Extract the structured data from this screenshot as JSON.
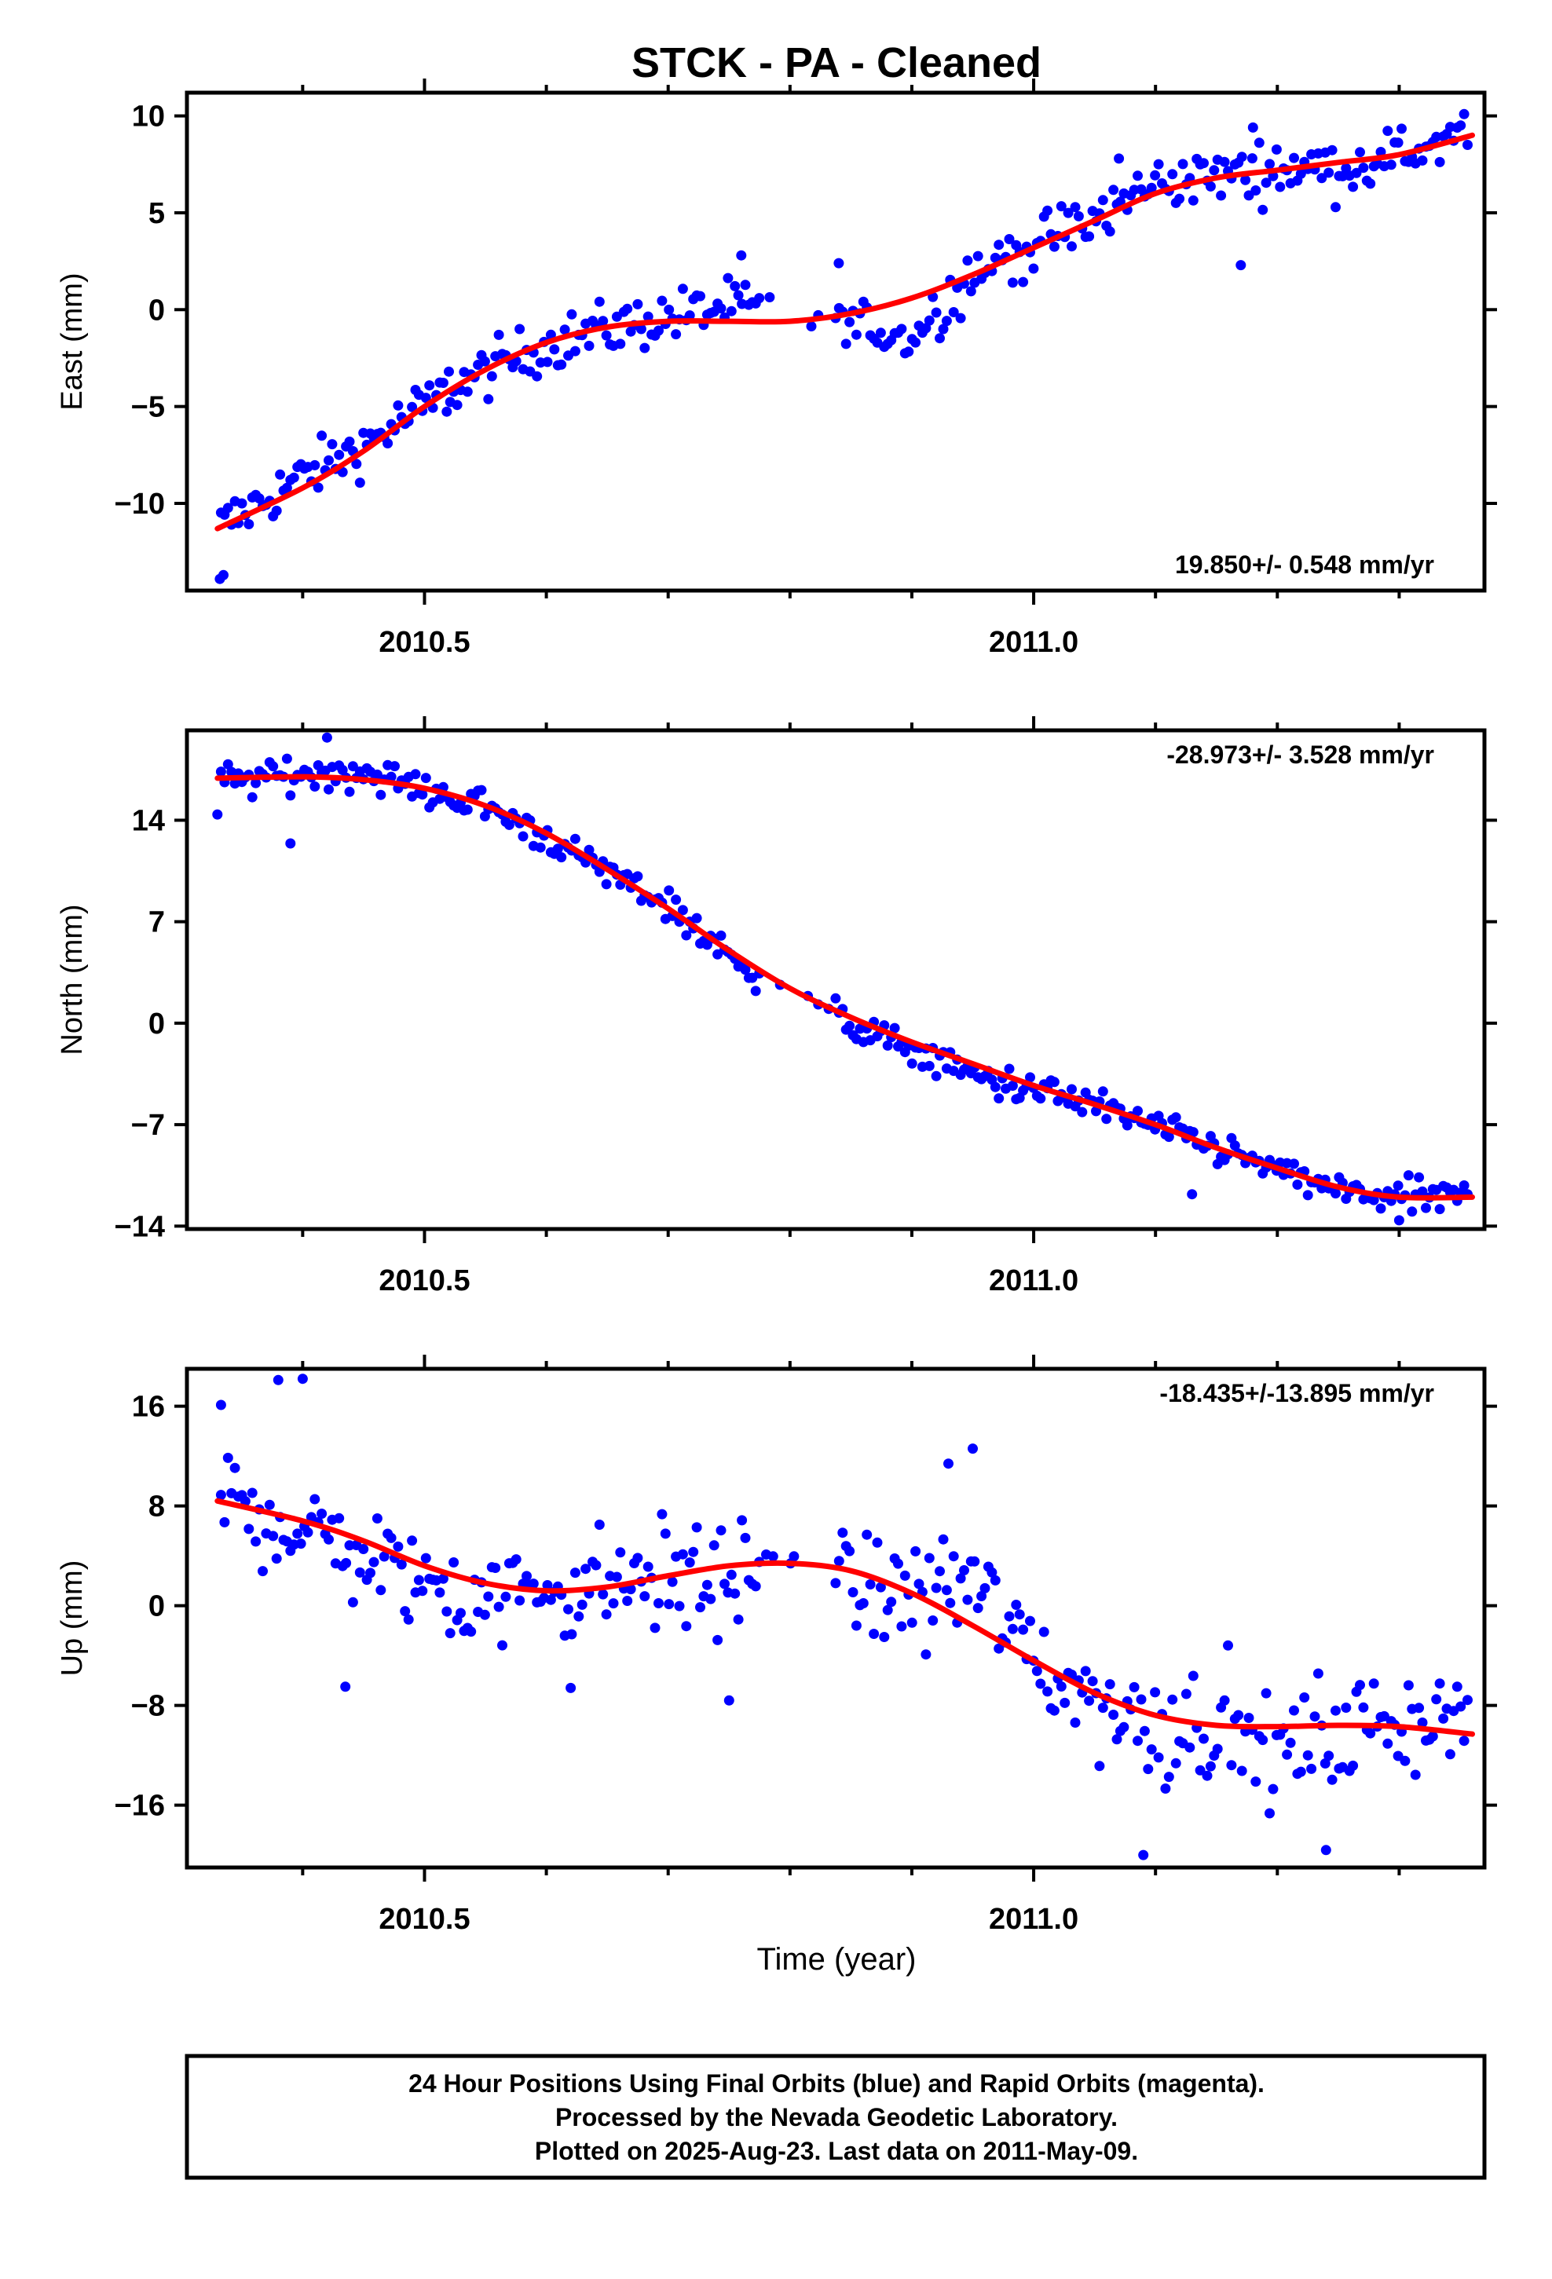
{
  "chart_data": {
    "type": "scatter",
    "title": "STCK  - PA - Cleaned",
    "xlabel": "Time (year)",
    "xlim": [
      2010.305,
      2011.37
    ],
    "x_major_ticks": [
      2010.5,
      2011.0
    ],
    "x_major_labels": [
      "2010.5",
      "2011.0"
    ],
    "x_minor_ticks": [
      2010.4,
      2010.6,
      2010.7,
      2010.8,
      2010.9,
      2011.1,
      2011.2,
      2011.3
    ],
    "grid": false,
    "legend": "none",
    "colors": {
      "points": "#0000ff",
      "fit": "#ff0000",
      "axes": "#000000"
    },
    "panels": [
      {
        "id": "east",
        "ylabel": "East (mm)",
        "ylim": [
          -14.5,
          11.2
        ],
        "yticks": [
          10,
          5,
          0,
          -5,
          -10
        ],
        "ytick_labels": [
          "10",
          "5",
          "0",
          "−5",
          "−10"
        ],
        "rate": "19.850+/- 0.548 mm/yr",
        "rate_position": "bottom-right",
        "fit": {
          "x": [
            2010.33,
            2010.4,
            2010.45,
            2010.5,
            2010.55,
            2010.6,
            2010.65,
            2010.7,
            2010.75,
            2010.8,
            2010.85,
            2010.9,
            2010.95,
            2011.0,
            2011.05,
            2011.1,
            2011.15,
            2011.2,
            2011.25,
            2011.3,
            2011.36
          ],
          "y": [
            -11.3,
            -9.2,
            -7.3,
            -5.0,
            -3.1,
            -1.7,
            -0.9,
            -0.6,
            -0.6,
            -0.6,
            -0.2,
            0.6,
            1.8,
            3.2,
            4.6,
            6.0,
            6.8,
            7.2,
            7.6,
            8.0,
            9.0
          ]
        },
        "anchors": [
          [
            2010.33,
            -11.3
          ],
          [
            2010.4,
            -8.6
          ],
          [
            2010.45,
            -7.0
          ],
          [
            2010.5,
            -5.0
          ],
          [
            2010.55,
            -3.2
          ],
          [
            2010.6,
            -1.8
          ],
          [
            2010.65,
            -1.0
          ],
          [
            2010.7,
            -0.4
          ],
          [
            2010.75,
            0.2
          ],
          [
            2010.8,
            -0.4
          ],
          [
            2010.85,
            -0.7
          ],
          [
            2010.9,
            -1.4
          ],
          [
            2010.95,
            1.8
          ],
          [
            2011.0,
            3.4
          ],
          [
            2011.05,
            4.6
          ],
          [
            2011.1,
            6.6
          ],
          [
            2011.15,
            6.9
          ],
          [
            2011.2,
            7.3
          ],
          [
            2011.25,
            7.3
          ],
          [
            2011.3,
            7.9
          ],
          [
            2011.36,
            9.4
          ]
        ],
        "noise": 1.0,
        "extra_points": [
          [
            2010.332,
            -13.9
          ],
          [
            2010.335,
            -13.7
          ],
          [
            2010.52,
            -3.2
          ],
          [
            2010.76,
            2.8
          ],
          [
            2010.84,
            2.4
          ],
          [
            2011.17,
            2.3
          ],
          [
            2011.07,
            7.8
          ],
          [
            2011.18,
            9.4
          ]
        ]
      },
      {
        "id": "north",
        "ylabel": "North (mm)",
        "ylim": [
          -14.2,
          20.2
        ],
        "yticks": [
          14,
          7,
          0,
          -7,
          -14
        ],
        "ytick_labels": [
          "14",
          "7",
          "0",
          "−7",
          "−14"
        ],
        "rate": "-28.973+/- 3.528 mm/yr",
        "rate_position": "top-right",
        "fit": {
          "x": [
            2010.33,
            2010.4,
            2010.45,
            2010.5,
            2010.55,
            2010.6,
            2010.65,
            2010.7,
            2010.75,
            2010.8,
            2010.85,
            2010.9,
            2010.95,
            2011.0,
            2011.05,
            2011.1,
            2011.15,
            2011.2,
            2011.25,
            2011.3,
            2011.36
          ],
          "y": [
            16.9,
            17.0,
            16.8,
            16.2,
            15.0,
            13.1,
            10.6,
            7.9,
            5.0,
            2.4,
            0.4,
            -1.3,
            -2.8,
            -4.3,
            -5.6,
            -7.0,
            -8.6,
            -10.0,
            -11.3,
            -12.0,
            -12.0
          ]
        },
        "anchors": [
          [
            2010.33,
            16.6
          ],
          [
            2010.4,
            17.2
          ],
          [
            2010.45,
            17.4
          ],
          [
            2010.5,
            16.0
          ],
          [
            2010.55,
            15.0
          ],
          [
            2010.6,
            12.8
          ],
          [
            2010.65,
            10.4
          ],
          [
            2010.7,
            8.2
          ],
          [
            2010.75,
            4.5
          ],
          [
            2010.8,
            2.2
          ],
          [
            2010.85,
            -0.2
          ],
          [
            2010.9,
            -1.8
          ],
          [
            2010.95,
            -3.6
          ],
          [
            2011.0,
            -4.6
          ],
          [
            2011.05,
            -5.6
          ],
          [
            2011.1,
            -7.2
          ],
          [
            2011.15,
            -8.6
          ],
          [
            2011.2,
            -10.2
          ],
          [
            2011.25,
            -11.6
          ],
          [
            2011.3,
            -12.0
          ],
          [
            2011.36,
            -12.0
          ]
        ],
        "noise": 0.8,
        "extra_points": [
          [
            2010.39,
            12.4
          ],
          [
            2010.42,
            19.7
          ],
          [
            2010.33,
            14.4
          ],
          [
            2011.13,
            -11.8
          ],
          [
            2011.3,
            -13.6
          ]
        ]
      },
      {
        "id": "up",
        "ylabel": "Up (mm)",
        "ylim": [
          -21.0,
          19.0
        ],
        "yticks": [
          16,
          8,
          0,
          -8,
          -16
        ],
        "ytick_labels": [
          "16",
          "8",
          "0",
          "−8",
          "−16"
        ],
        "rate": "-18.435+/-13.895 mm/yr",
        "rate_position": "top-right",
        "fit": {
          "x": [
            2010.33,
            2010.4,
            2010.45,
            2010.5,
            2010.55,
            2010.6,
            2010.65,
            2010.7,
            2010.75,
            2010.8,
            2010.85,
            2010.9,
            2010.95,
            2011.0,
            2011.05,
            2011.1,
            2011.15,
            2011.2,
            2011.25,
            2011.3,
            2011.36
          ],
          "y": [
            8.4,
            6.8,
            5.2,
            3.2,
            1.8,
            1.2,
            1.5,
            2.4,
            3.2,
            3.4,
            2.8,
            1.0,
            -1.6,
            -4.4,
            -7.0,
            -8.8,
            -9.6,
            -9.7,
            -9.6,
            -9.7,
            -10.3
          ]
        },
        "anchors": [
          [
            2010.33,
            9.0
          ],
          [
            2010.4,
            6.0
          ],
          [
            2010.45,
            4.0
          ],
          [
            2010.5,
            1.6
          ],
          [
            2010.55,
            0.8
          ],
          [
            2010.6,
            1.4
          ],
          [
            2010.65,
            1.8
          ],
          [
            2010.7,
            2.2
          ],
          [
            2010.75,
            2.2
          ],
          [
            2010.8,
            3.4
          ],
          [
            2010.85,
            1.4
          ],
          [
            2010.9,
            0.8
          ],
          [
            2010.95,
            2.0
          ],
          [
            2011.0,
            -4.4
          ],
          [
            2011.05,
            -7.6
          ],
          [
            2011.1,
            -9.8
          ],
          [
            2011.15,
            -9.2
          ],
          [
            2011.2,
            -12.0
          ],
          [
            2011.25,
            -10.4
          ],
          [
            2011.3,
            -9.0
          ],
          [
            2011.36,
            -8.6
          ]
        ],
        "noise": 3.2,
        "extra_points": [
          [
            2010.333,
            16.1
          ],
          [
            2010.38,
            18.1
          ],
          [
            2010.4,
            18.2
          ],
          [
            2010.95,
            12.6
          ],
          [
            2010.93,
            11.4
          ],
          [
            2011.09,
            -20.0
          ],
          [
            2011.24,
            -19.6
          ],
          [
            2010.75,
            -7.6
          ],
          [
            2010.62,
            -6.6
          ],
          [
            2010.435,
            -6.5
          ]
        ]
      }
    ]
  },
  "footer": {
    "line1": "24 Hour Positions Using Final Orbits (blue) and Rapid Orbits (magenta).",
    "line2": "Processed by the Nevada Geodetic Laboratory.",
    "line3": "Plotted on 2025-Aug-23. Last data on 2011-May-09."
  }
}
